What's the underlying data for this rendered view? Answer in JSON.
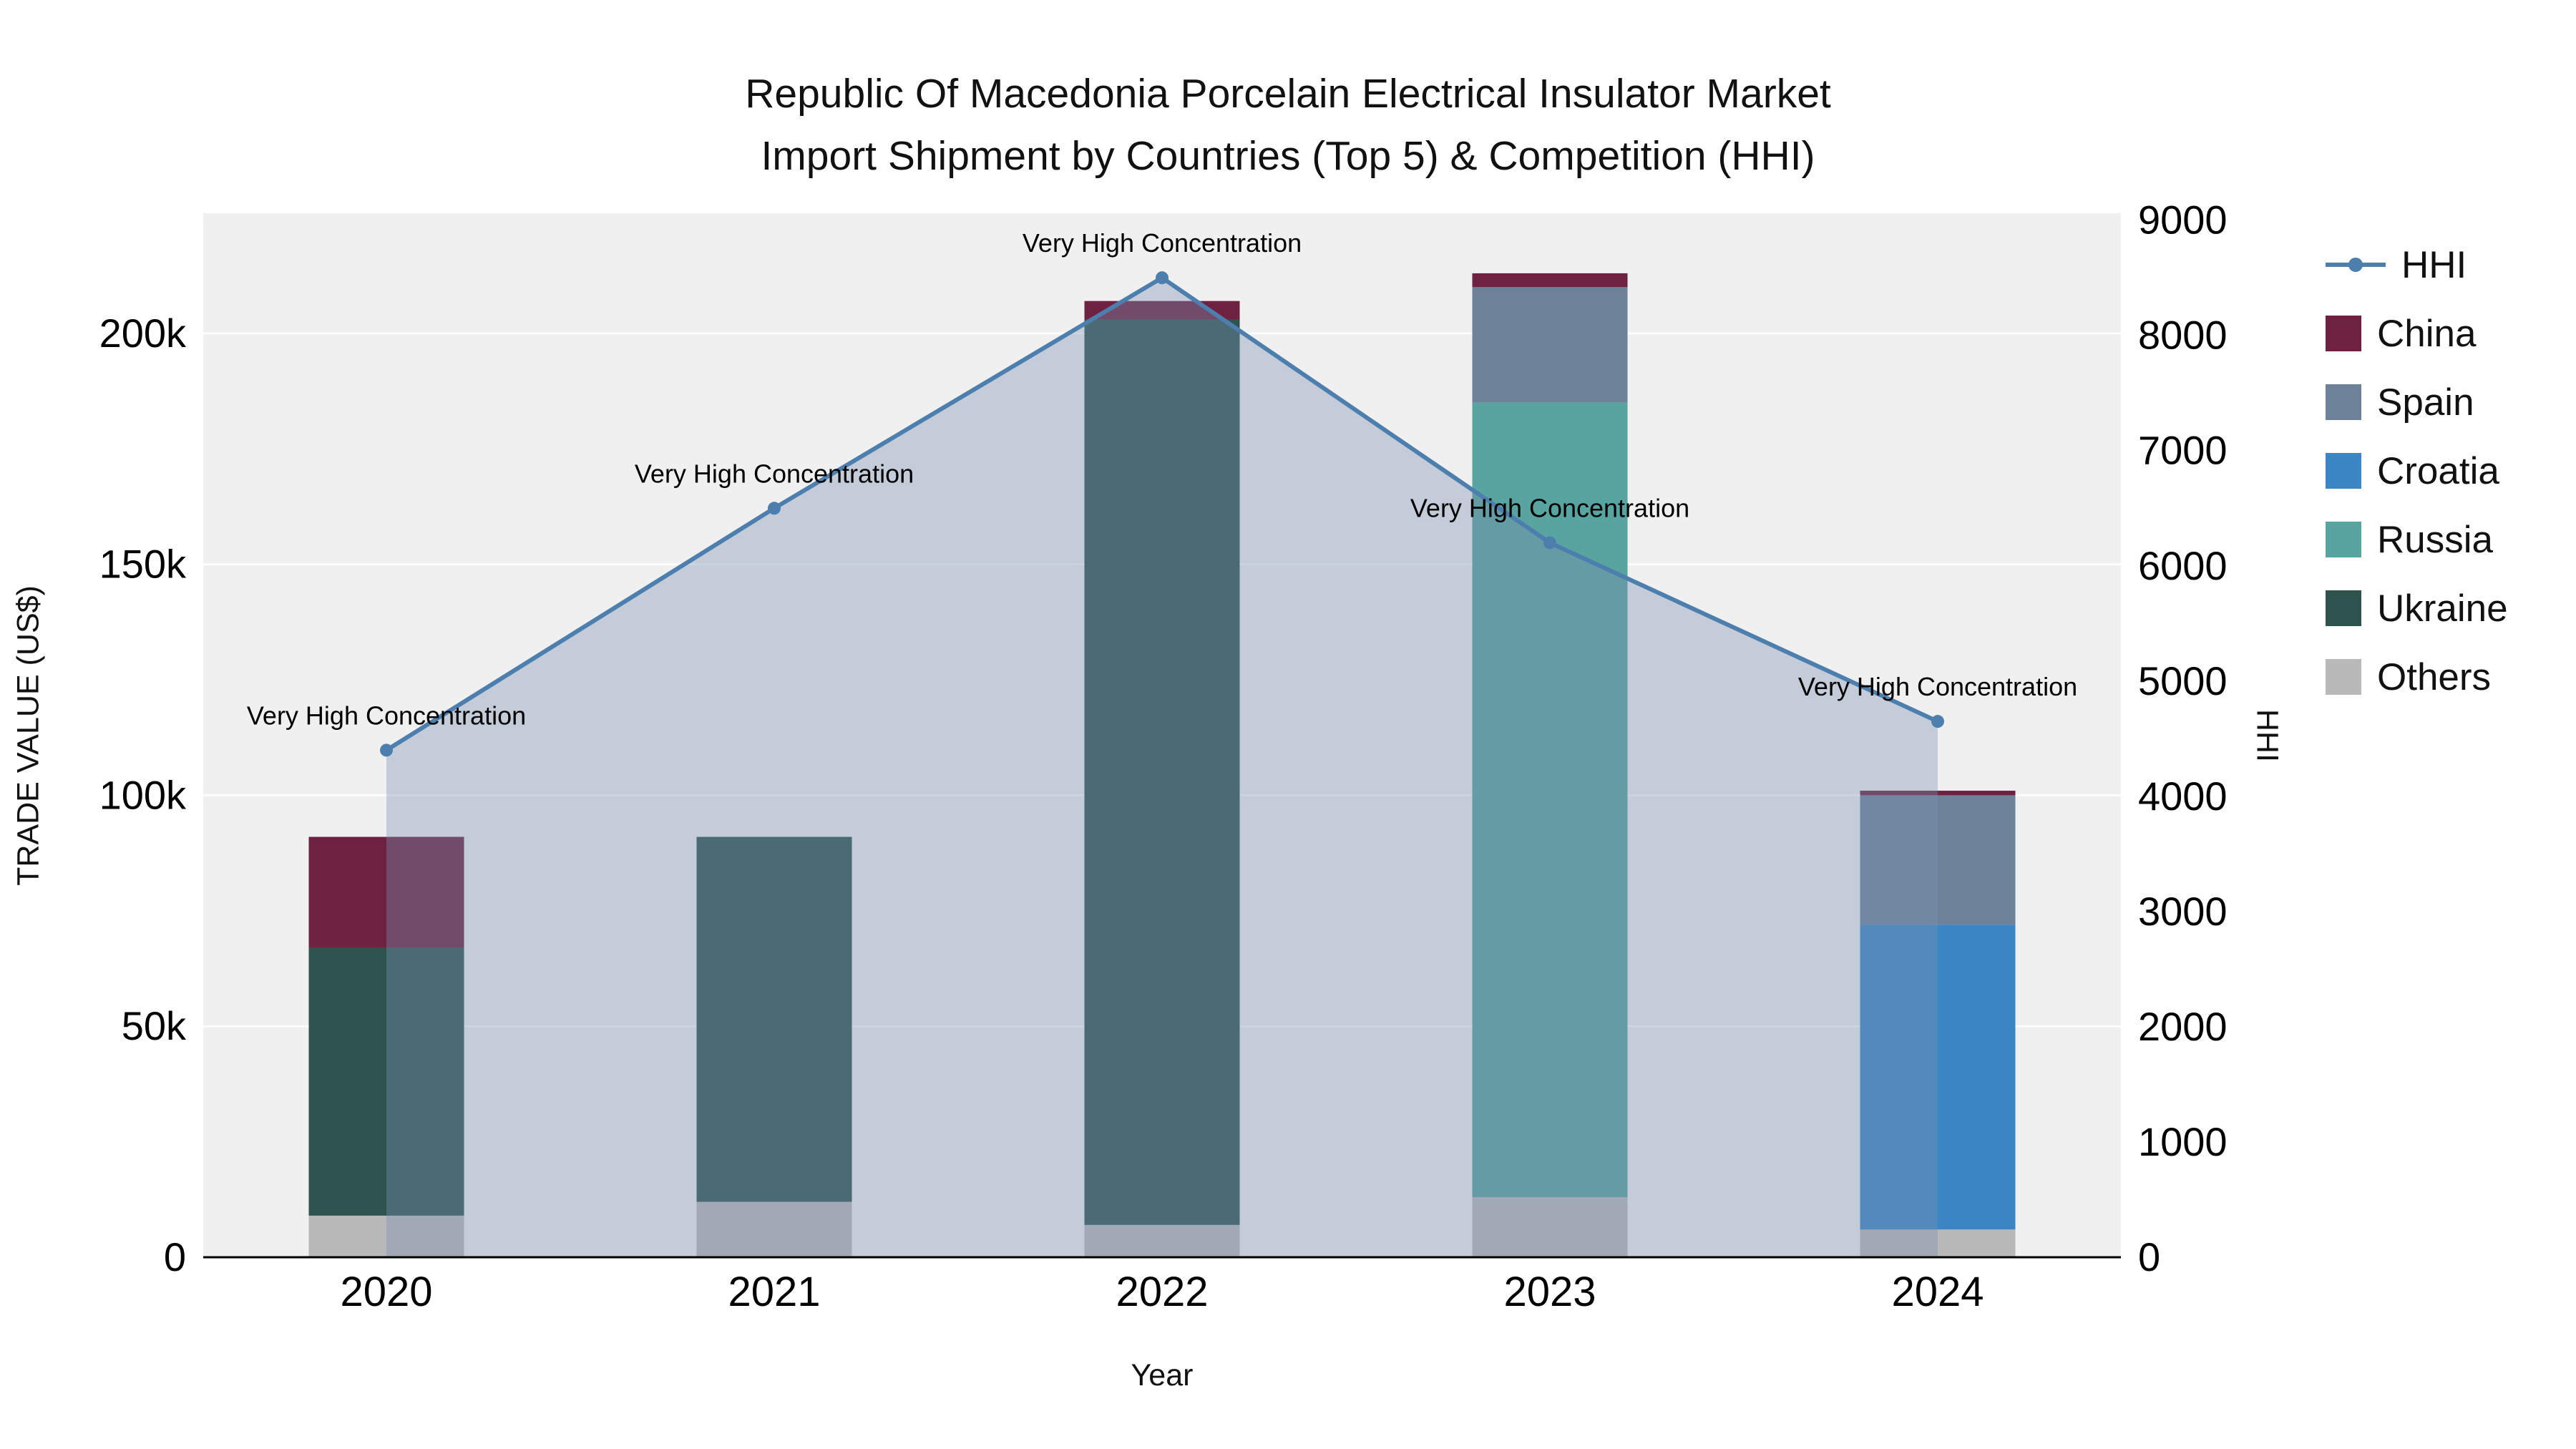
{
  "title": {
    "line1": "Republic Of Macedonia Porcelain Electrical Insulator Market",
    "line2": "Import Shipment by Countries (Top 5) & Competition (HHI)"
  },
  "axes": {
    "x": {
      "label": "Year"
    },
    "y_left": {
      "label": "TRADE VALUE (US$)",
      "max": 226000,
      "ticks": [
        {
          "v": 0,
          "t": "0"
        },
        {
          "v": 50000,
          "t": "50k"
        },
        {
          "v": 100000,
          "t": "100k"
        },
        {
          "v": 150000,
          "t": "150k"
        },
        {
          "v": 200000,
          "t": "200k"
        }
      ]
    },
    "y_right": {
      "label": "HHI",
      "max": 9060,
      "ticks": [
        {
          "v": 0,
          "t": "0"
        },
        {
          "v": 1000,
          "t": "1000"
        },
        {
          "v": 2000,
          "t": "2000"
        },
        {
          "v": 3000,
          "t": "3000"
        },
        {
          "v": 4000,
          "t": "4000"
        },
        {
          "v": 5000,
          "t": "5000"
        },
        {
          "v": 6000,
          "t": "6000"
        },
        {
          "v": 7000,
          "t": "7000"
        },
        {
          "v": 8000,
          "t": "8000"
        },
        {
          "v": 9000,
          "t": "9000"
        }
      ]
    }
  },
  "chart_data": {
    "type": "bar",
    "overlay": "line",
    "title": "Republic Of Macedonia Porcelain Electrical Insulator Market Import Shipment by Countries (Top 5) & Competition (HHI)",
    "xlabel": "Year",
    "ylabel_left": "TRADE VALUE (US$)",
    "ylabel_right": "HHI",
    "categories": [
      "2020",
      "2021",
      "2022",
      "2023",
      "2024"
    ],
    "bar_series": [
      {
        "name": "Others",
        "color": "#b9b9b9",
        "values": [
          9000,
          12000,
          7000,
          13000,
          6000
        ]
      },
      {
        "name": "Ukraine",
        "color": "#2e534f",
        "values": [
          58000,
          79000,
          196000,
          0,
          0
        ]
      },
      {
        "name": "Russia",
        "color": "#58a4a1",
        "values": [
          0,
          0,
          0,
          172000,
          0
        ]
      },
      {
        "name": "Croatia",
        "color": "#3d86c6",
        "values": [
          0,
          0,
          0,
          0,
          66000
        ]
      },
      {
        "name": "Spain",
        "color": "#6d8299",
        "values": [
          0,
          0,
          0,
          25000,
          28000
        ]
      },
      {
        "name": "China",
        "color": "#6e2140",
        "values": [
          24000,
          0,
          4000,
          3000,
          1000
        ]
      }
    ],
    "line_series": {
      "name": "HHI",
      "axis": "right",
      "color": "#4d7fae",
      "fill": "rgba(121,145,177,0.38)",
      "values": [
        4400,
        6500,
        8500,
        6200,
        4650
      ]
    },
    "annotations": [
      "Very High Concentration",
      "Very High Concentration",
      "Very High Concentration",
      "Very High Concentration",
      "Very High Concentration"
    ],
    "ylim_left": [
      0,
      226000
    ],
    "ylim_right": [
      0,
      9060
    ],
    "grid": true,
    "legend_position": "right"
  },
  "legend": {
    "items": [
      {
        "label": "HHI",
        "type": "line",
        "color": "#4d7fae"
      },
      {
        "label": "China",
        "type": "square",
        "color": "#6e2140"
      },
      {
        "label": "Spain",
        "type": "square",
        "color": "#6d8299"
      },
      {
        "label": "Croatia",
        "type": "square",
        "color": "#3d86c6"
      },
      {
        "label": "Russia",
        "type": "square",
        "color": "#58a4a1"
      },
      {
        "label": "Ukraine",
        "type": "square",
        "color": "#2e534f"
      },
      {
        "label": "Others",
        "type": "square",
        "color": "#b9b9b9"
      }
    ]
  }
}
